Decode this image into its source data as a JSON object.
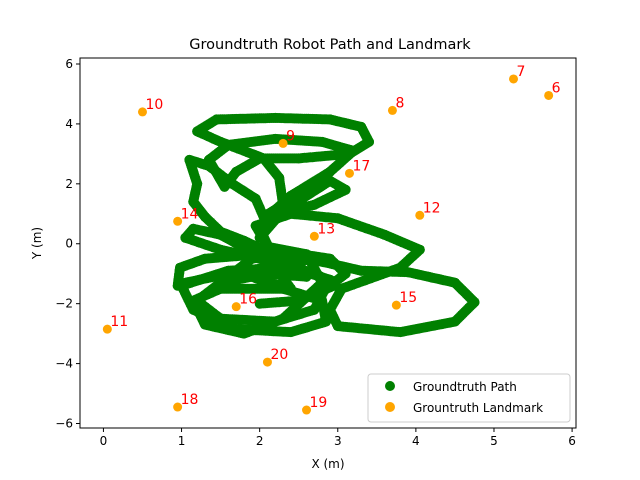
{
  "chart_data": {
    "type": "scatter",
    "title": "Groundtruth Robot Path and Landmark",
    "xlabel": "X (m)",
    "ylabel": "Y (m)",
    "xlim": [
      -0.3,
      6.05
    ],
    "ylim": [
      -6.15,
      6.2
    ],
    "xticks": [
      0,
      1,
      2,
      3,
      4,
      5,
      6
    ],
    "yticks": [
      -6,
      -4,
      -2,
      0,
      2,
      4,
      6
    ],
    "grid": false,
    "legend_position": "lower right",
    "series": [
      {
        "name": "Groundtruth Path",
        "color": "#008000",
        "marker": "circle",
        "segments": [
          [
            [
              0.95,
              -1.4
            ],
            [
              0.98,
              -0.8
            ],
            [
              1.3,
              -0.5
            ],
            [
              2.0,
              -0.35
            ],
            [
              2.8,
              -0.6
            ],
            [
              3.3,
              -0.9
            ],
            [
              3.9,
              -0.95
            ],
            [
              4.5,
              -1.3
            ],
            [
              4.75,
              -1.95
            ],
            [
              4.5,
              -2.6
            ],
            [
              3.8,
              -2.95
            ],
            [
              3.0,
              -2.75
            ],
            [
              2.9,
              -2.2
            ],
            [
              3.05,
              -1.5
            ]
          ],
          [
            [
              3.05,
              -1.5
            ],
            [
              3.8,
              -0.8
            ],
            [
              4.05,
              -0.2
            ],
            [
              3.6,
              0.3
            ],
            [
              3.0,
              0.85
            ],
            [
              2.4,
              1.0
            ],
            [
              1.95,
              0.6
            ],
            [
              2.1,
              -0.1
            ],
            [
              2.6,
              -0.35
            ]
          ],
          [
            [
              2.6,
              -0.35
            ],
            [
              2.8,
              -1.3
            ],
            [
              2.3,
              -2.5
            ],
            [
              1.8,
              -3.0
            ],
            [
              1.3,
              -2.7
            ],
            [
              1.15,
              -1.9
            ],
            [
              1.5,
              -1.5
            ],
            [
              2.3,
              -1.5
            ],
            [
              2.8,
              -1.9
            ],
            [
              2.85,
              -2.6
            ],
            [
              2.4,
              -2.95
            ],
            [
              1.7,
              -2.85
            ],
            [
              1.15,
              -2.2
            ]
          ],
          [
            [
              1.15,
              -2.2
            ],
            [
              1.0,
              -1.4
            ],
            [
              1.6,
              -0.9
            ],
            [
              2.4,
              -0.8
            ],
            [
              2.9,
              -1.2
            ],
            [
              2.7,
              -2.2
            ],
            [
              2.2,
              -2.6
            ],
            [
              1.5,
              -2.5
            ],
            [
              1.2,
              -1.9
            ],
            [
              1.5,
              -1.3
            ],
            [
              2.1,
              -1.0
            ],
            [
              2.6,
              -1.1
            ]
          ],
          [
            [
              2.6,
              -1.1
            ],
            [
              2.2,
              -0.4
            ],
            [
              1.8,
              0.1
            ],
            [
              1.5,
              0.4
            ],
            [
              1.3,
              0.9
            ],
            [
              1.15,
              1.4
            ],
            [
              1.2,
              2.0
            ],
            [
              1.1,
              2.8
            ],
            [
              1.35,
              2.6
            ],
            [
              1.65,
              2.0
            ],
            [
              1.95,
              1.5
            ]
          ],
          [
            [
              1.95,
              1.5
            ],
            [
              2.05,
              0.9
            ],
            [
              2.3,
              1.3
            ],
            [
              2.25,
              2.2
            ],
            [
              2.05,
              2.85
            ],
            [
              1.5,
              3.4
            ],
            [
              1.2,
              3.75
            ],
            [
              1.45,
              4.15
            ],
            [
              2.2,
              4.2
            ],
            [
              2.9,
              4.15
            ],
            [
              3.3,
              3.9
            ],
            [
              3.4,
              3.4
            ],
            [
              3.15,
              3.0
            ],
            [
              2.5,
              2.85
            ],
            [
              2.0,
              2.85
            ],
            [
              1.7,
              2.4
            ],
            [
              1.55,
              1.9
            ]
          ],
          [
            [
              1.55,
              1.9
            ],
            [
              1.35,
              2.8
            ],
            [
              1.6,
              3.3
            ],
            [
              2.2,
              3.5
            ],
            [
              2.8,
              3.4
            ],
            [
              3.2,
              3.1
            ],
            [
              2.9,
              2.4
            ],
            [
              2.4,
              1.6
            ],
            [
              2.1,
              0.9
            ],
            [
              2.0,
              0.2
            ]
          ],
          [
            [
              2.0,
              0.2
            ],
            [
              2.3,
              1.1
            ],
            [
              2.9,
              2.1
            ],
            [
              3.1,
              1.8
            ],
            [
              2.7,
              1.3
            ],
            [
              2.2,
              1.0
            ],
            [
              2.0,
              0.5
            ],
            [
              2.15,
              -0.3
            ],
            [
              2.55,
              -0.6
            ]
          ],
          [
            [
              2.55,
              -0.6
            ],
            [
              2.0,
              -0.5
            ],
            [
              1.5,
              -0.2
            ],
            [
              1.05,
              0.2
            ],
            [
              1.15,
              0.5
            ],
            [
              1.5,
              0.3
            ],
            [
              1.85,
              -0.2
            ],
            [
              2.2,
              -0.8
            ],
            [
              2.4,
              -1.5
            ]
          ],
          [
            [
              2.4,
              -1.5
            ],
            [
              2.0,
              -1.2
            ],
            [
              1.7,
              -0.9
            ],
            [
              1.9,
              -0.5
            ],
            [
              2.4,
              -0.3
            ],
            [
              2.9,
              -0.5
            ],
            [
              3.1,
              -1.0
            ],
            [
              2.8,
              -1.6
            ]
          ],
          [
            [
              1.05,
              -1.3
            ],
            [
              1.6,
              -1.0
            ],
            [
              2.2,
              -0.75
            ],
            [
              2.7,
              -0.95
            ],
            [
              2.95,
              -1.4
            ],
            [
              2.5,
              -1.9
            ],
            [
              2.0,
              -2.0
            ]
          ]
        ]
      },
      {
        "name": "Grountruth Landmark",
        "color": "#FFA500",
        "marker": "circle",
        "points": [
          {
            "label": "6",
            "x": 5.7,
            "y": 4.95
          },
          {
            "label": "7",
            "x": 5.25,
            "y": 5.5
          },
          {
            "label": "8",
            "x": 3.7,
            "y": 4.45
          },
          {
            "label": "9",
            "x": 2.3,
            "y": 3.35
          },
          {
            "label": "10",
            "x": 0.5,
            "y": 4.4
          },
          {
            "label": "11",
            "x": 0.05,
            "y": -2.85
          },
          {
            "label": "12",
            "x": 4.05,
            "y": 0.95
          },
          {
            "label": "13",
            "x": 2.7,
            "y": 0.25
          },
          {
            "label": "14",
            "x": 0.95,
            "y": 0.75
          },
          {
            "label": "15",
            "x": 3.75,
            "y": -2.05
          },
          {
            "label": "16",
            "x": 1.7,
            "y": -2.1
          },
          {
            "label": "17",
            "x": 3.15,
            "y": 2.35
          },
          {
            "label": "18",
            "x": 0.95,
            "y": -5.45
          },
          {
            "label": "19",
            "x": 2.6,
            "y": -5.55
          },
          {
            "label": "20",
            "x": 2.1,
            "y": -3.95
          }
        ]
      }
    ],
    "annotation_color": "#FF0000"
  }
}
